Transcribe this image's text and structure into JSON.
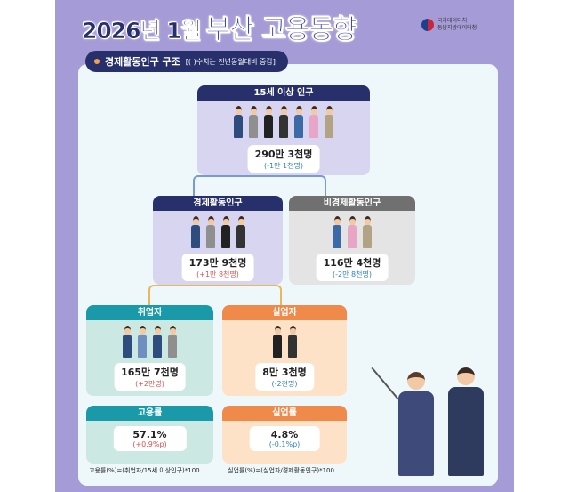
{
  "header": {
    "title_date": "2026년 1월",
    "title_main": "부산 고용동향",
    "logo_line1": "국가데이터처",
    "logo_line2": "동남지방데이터청"
  },
  "section": {
    "title": "경제활동인구 구조",
    "note": "[( )수치는 전년동월대비 증감]"
  },
  "colors": {
    "navy": "#27306b",
    "teal": "#1a9aa8",
    "orange": "#f08a4b",
    "gray": "#707070",
    "increase": "#d9534f",
    "decrease": "#2f7fbf"
  },
  "population15": {
    "label": "15세 이상 인구",
    "value": "290만 3천명",
    "change": "(-1만 1천명)"
  },
  "active": {
    "label": "경제활동인구",
    "value": "173만 9천명",
    "change": "(+1만 8천명)"
  },
  "inactive": {
    "label": "비경제활동인구",
    "value": "116만 4천명",
    "change": "(-2만 8천명)"
  },
  "employed": {
    "label": "취업자",
    "value": "165만 7천명",
    "change": "(+2만명)"
  },
  "unemployed": {
    "label": "실업자",
    "value": "8만 3천명",
    "change": "(-2천명)"
  },
  "employment_rate": {
    "label": "고용률",
    "value": "57.1%",
    "change": "(+0.9%p)",
    "formula": "고용률(%)=(취업자/15세 이상인구)*100"
  },
  "unemployment_rate": {
    "label": "실업률",
    "value": "4.8%",
    "change": "(-0.1%p)",
    "formula": "실업률(%)=(실업자/경제활동인구)*100"
  }
}
